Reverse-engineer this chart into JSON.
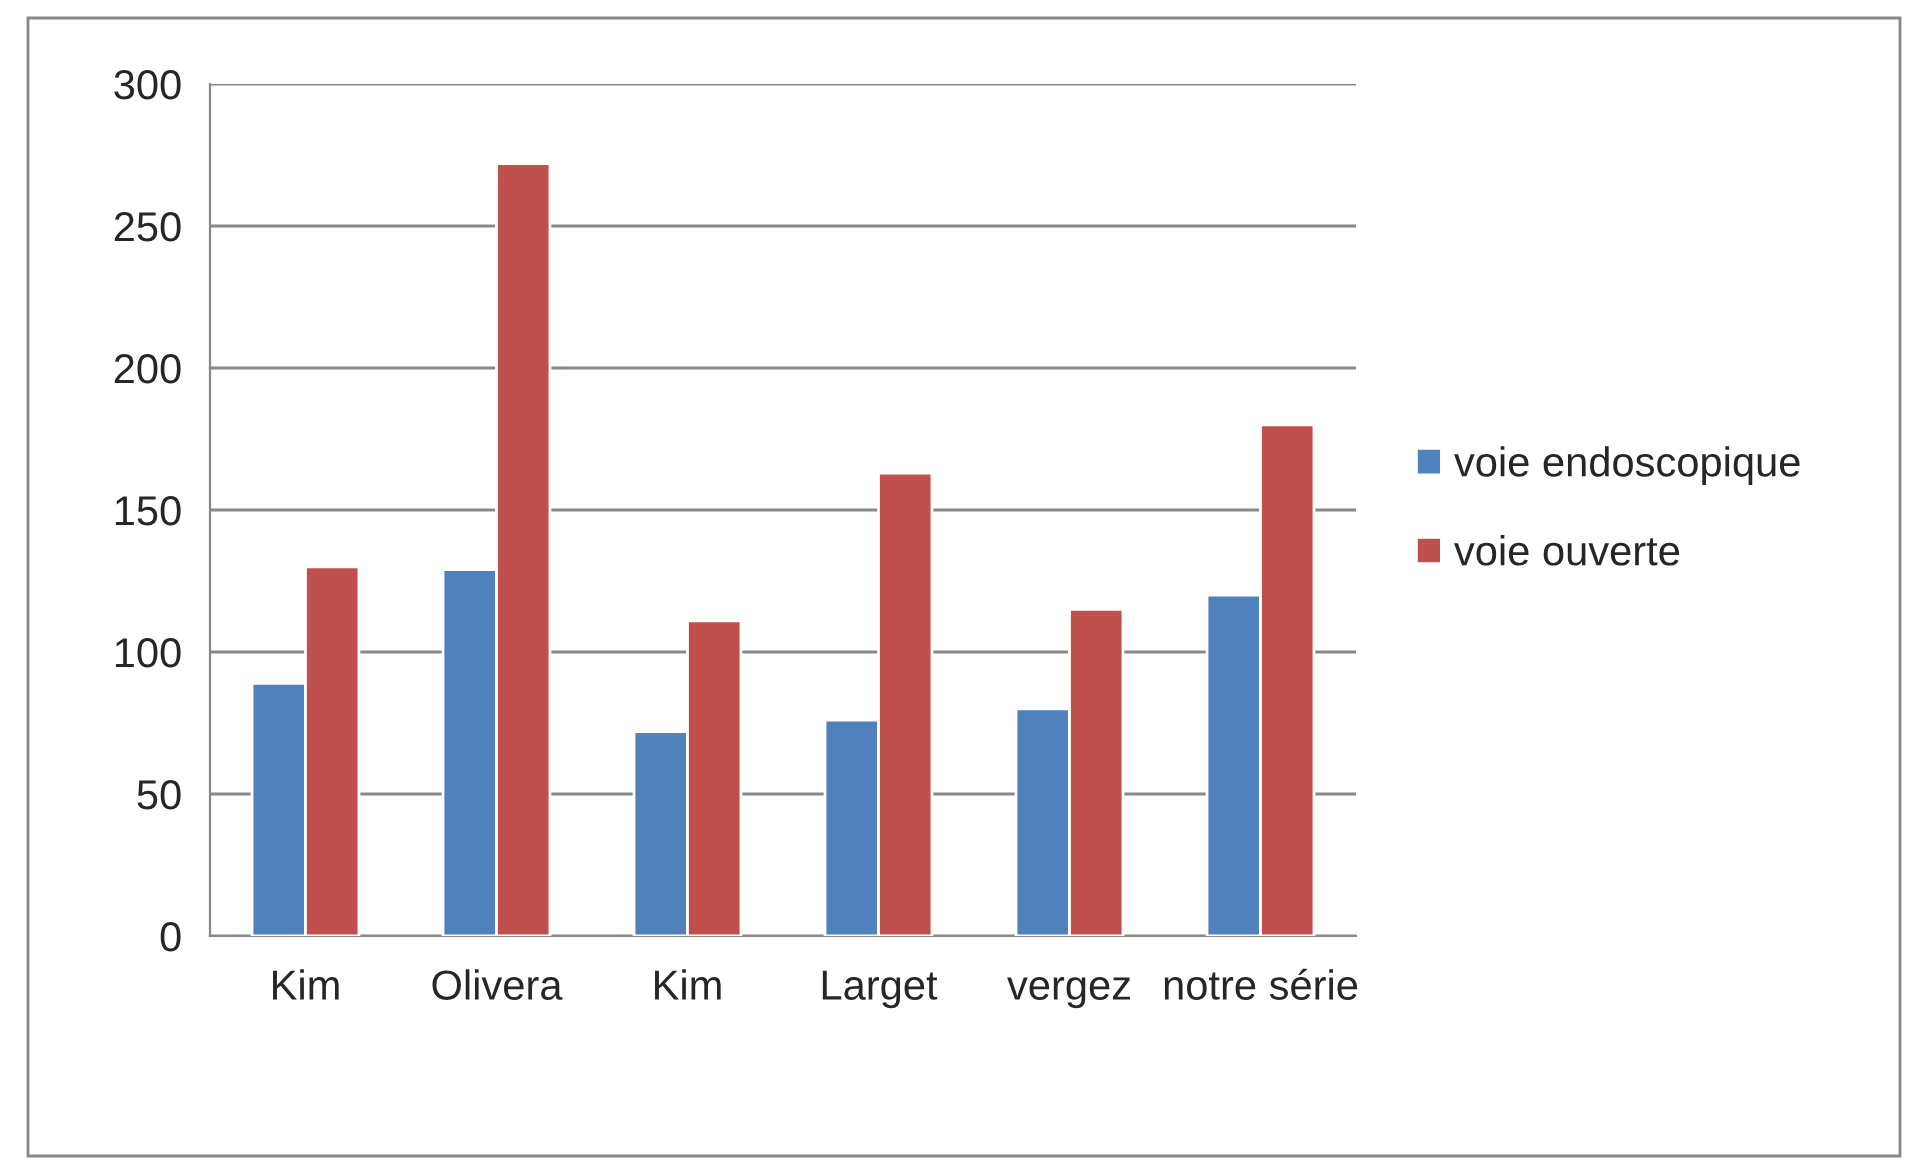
{
  "chart_data": {
    "type": "bar",
    "categories": [
      "Kim",
      "Olivera",
      "Kim",
      "Larget",
      "vergez",
      "notre série"
    ],
    "series": [
      {
        "name": "voie endoscopique",
        "color": "#4f81bd",
        "values": [
          89,
          129,
          72,
          76,
          80,
          120
        ]
      },
      {
        "name": "voie ouverte",
        "color": "#c0504d",
        "values": [
          130,
          272,
          111,
          163,
          115,
          180
        ]
      }
    ],
    "ylim": [
      0,
      300
    ],
    "yticks": [
      0,
      50,
      100,
      150,
      200,
      250,
      300
    ],
    "grid": "y",
    "legend": "right"
  }
}
